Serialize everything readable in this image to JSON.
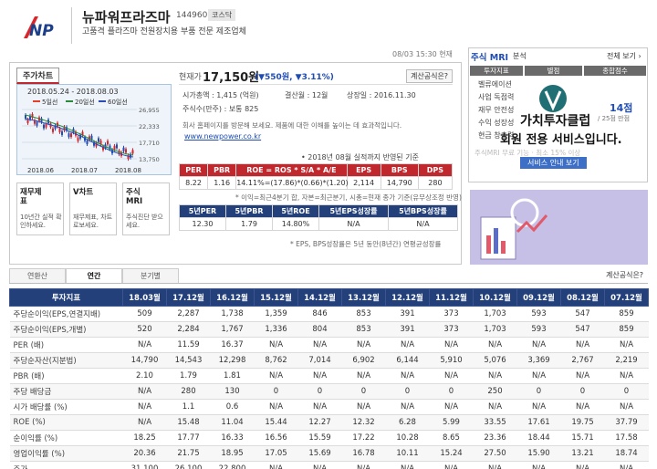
{
  "header": {
    "logo": "NP",
    "name": "뉴파워프라즈마",
    "code": "144960",
    "market": "코스닥",
    "description": "고품격 플라즈마 전원장치용 부품 전문 제조업체"
  },
  "timestamp": "08/03 15:30 현재",
  "chart_panel": {
    "tab": "주가차트",
    "period": "2018.05.24 - 2018.08.03",
    "legend": [
      "5일선",
      "20일선",
      "60일선"
    ],
    "yticks": [
      "26,955",
      "22,333",
      "17,710",
      "13,750"
    ],
    "xticks": [
      "2018.06",
      "2018.07",
      "2018.08"
    ]
  },
  "tools": [
    {
      "title": "재무제표",
      "caption": "10년간 실적 확인하세요."
    },
    {
      "title": "V차트",
      "caption": "재무제표, 차트로보세요."
    },
    {
      "title": "주식MRI",
      "caption": "주식진단 받으세요."
    }
  ],
  "price": {
    "label": "현재가",
    "value": "17,150원",
    "change": "(▼550원, ▼3.11%)",
    "formula_button": "계산공식은?"
  },
  "info": [
    "시가총액 : 1,415 (억원)",
    "결산월 : 12월",
    "상장일 : 2016.11.30",
    "주식수(만주) : 보통 825"
  ],
  "homepage": {
    "text": "회사 홈페이지를 방문해 보세요. 제품에 대한 이해를 높이는 데 효과적입니다.",
    "url": "www.newpower.co.kr"
  },
  "basis": "• 2018년 08월 실적까지 반영된 기준",
  "ratios": {
    "headers": [
      "PER",
      "PBR",
      "ROE = ROS * S/A * A/E",
      "EPS",
      "BPS",
      "DPS"
    ],
    "values": [
      "8.22",
      "1.16",
      "14.11%=(17.86)*(0.66)*(1.20)",
      "2,114",
      "14,790",
      "280"
    ]
  },
  "ratios_note": "* 이익=최근4분기 합, 자본=최근분기, 시총=현재 종가 기준(유무상조정 반영)",
  "five_year": {
    "headers": [
      "5년PER",
      "5년PBR",
      "5년ROE",
      "5년EPS성장률",
      "5년BPS성장률"
    ],
    "values": [
      "12.30",
      "1.79",
      "14.80%",
      "N/A",
      "N/A"
    ]
  },
  "five_year_note": "* EPS, BPS성장률은 5년 동안(8년간) 연평균성장률",
  "mri": {
    "title": "주식 MRI",
    "title_suffix": "분석",
    "view_all": "전체 보기 ›",
    "headers": [
      "투자지표",
      "별점",
      "종합점수"
    ],
    "rows": [
      "벨류에이션",
      "사업 독점력",
      "재무 안전성",
      "수익 성장성",
      "현금 창출력"
    ],
    "score": "14점",
    "score_max": "/ 25점 만점",
    "overlay_line1": "가치투자클럽",
    "overlay_line2": "회원 전용 서비스입니다.",
    "overlay_button": "서비스 안내 보기",
    "faded_text": "주식MRI 무료 기능 · 최소 15% 이상"
  },
  "period_tabs": [
    "연환산",
    "연간",
    "분기별"
  ],
  "formula_button2": "계산공식은?",
  "table": {
    "headers": [
      "투자지표",
      "18.03월",
      "17.12월",
      "16.12월",
      "15.12월",
      "14.12월",
      "13.12월",
      "12.12월",
      "11.12월",
      "10.12월",
      "09.12월",
      "08.12월",
      "07.12월"
    ],
    "rows": [
      [
        "주당순이익(EPS,연결지배)",
        "509",
        "2,287",
        "1,738",
        "1,359",
        "846",
        "853",
        "391",
        "373",
        "1,703",
        "593",
        "547",
        "859"
      ],
      [
        "주당순이익(EPS,개별)",
        "520",
        "2,284",
        "1,767",
        "1,336",
        "804",
        "853",
        "391",
        "373",
        "1,703",
        "593",
        "547",
        "859"
      ],
      [
        "PER (배)",
        "N/A",
        "11.59",
        "16.37",
        "N/A",
        "N/A",
        "N/A",
        "N/A",
        "N/A",
        "N/A",
        "N/A",
        "N/A",
        "N/A"
      ],
      [
        "주당순자산(지분법)",
        "14,790",
        "14,543",
        "12,298",
        "8,762",
        "7,014",
        "6,902",
        "6,144",
        "5,910",
        "5,076",
        "3,369",
        "2,767",
        "2,219"
      ],
      [
        "PBR (배)",
        "2.10",
        "1.79",
        "1.81",
        "N/A",
        "N/A",
        "N/A",
        "N/A",
        "N/A",
        "N/A",
        "N/A",
        "N/A",
        "N/A"
      ],
      [
        "주당 배당금",
        "N/A",
        "280",
        "130",
        "0",
        "0",
        "0",
        "0",
        "0",
        "250",
        "0",
        "0",
        "0"
      ],
      [
        "시가 배당률 (%)",
        "N/A",
        "1.1",
        "0.6",
        "N/A",
        "N/A",
        "N/A",
        "N/A",
        "N/A",
        "N/A",
        "N/A",
        "N/A",
        "N/A"
      ],
      [
        "ROE (%)",
        "N/A",
        "15.48",
        "11.04",
        "15.44",
        "12.27",
        "12.32",
        "6.28",
        "5.99",
        "33.55",
        "17.61",
        "19.75",
        "37.79"
      ],
      [
        "순이익률 (%)",
        "18.25",
        "17.77",
        "16.33",
        "16.56",
        "15.59",
        "17.22",
        "10.28",
        "8.65",
        "23.36",
        "18.44",
        "15.71",
        "17.58"
      ],
      [
        "영업이익률 (%)",
        "20.36",
        "21.75",
        "18.95",
        "17.05",
        "15.69",
        "16.78",
        "10.11",
        "15.24",
        "27.50",
        "15.90",
        "13.21",
        "18.74"
      ],
      [
        "주가",
        "31,100",
        "26,100",
        "22,800",
        "N/A",
        "N/A",
        "N/A",
        "N/A",
        "N/A",
        "N/A",
        "N/A",
        "N/A",
        "N/A"
      ]
    ]
  }
}
